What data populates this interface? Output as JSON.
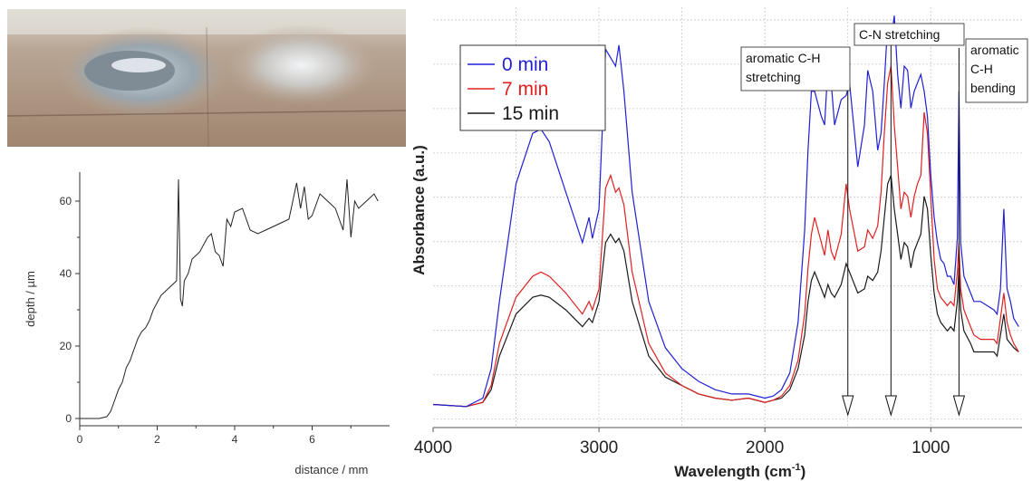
{
  "charts": [
    {
      "id": "depth-profile",
      "type": "line",
      "xlabel": "distance / mm",
      "ylabel": "depth / µm",
      "xlim": [
        0,
        8
      ],
      "ylim": [
        -2,
        68
      ],
      "xticks": [
        "0",
        "2",
        "4",
        "6"
      ],
      "xtick_values": [
        0,
        2,
        4,
        6
      ],
      "yticks": [
        "0",
        "20",
        "40",
        "60"
      ],
      "ytick_values": [
        0,
        20,
        40,
        60
      ],
      "grid": false,
      "series": [
        {
          "color": "#222222",
          "x": [
            0,
            0.5,
            0.7,
            0.8,
            0.9,
            1.0,
            1.1,
            1.2,
            1.3,
            1.4,
            1.5,
            1.6,
            1.7,
            1.8,
            1.9,
            2.0,
            2.1,
            2.2,
            2.3,
            2.4,
            2.5,
            2.55,
            2.6,
            2.65,
            2.7,
            2.8,
            2.9,
            3.0,
            3.1,
            3.2,
            3.3,
            3.4,
            3.5,
            3.6,
            3.7,
            3.8,
            3.9,
            4.0,
            4.2,
            4.4,
            4.6,
            4.8,
            5.0,
            5.2,
            5.4,
            5.6,
            5.7,
            5.8,
            5.9,
            6.0,
            6.2,
            6.4,
            6.6,
            6.8,
            6.9,
            7.0,
            7.1,
            7.2,
            7.4,
            7.6,
            7.7
          ],
          "y": [
            0,
            0,
            0.5,
            2,
            5,
            8,
            10,
            14,
            16,
            19,
            22,
            24,
            25,
            27,
            30,
            32,
            34,
            35,
            36,
            37,
            38,
            66,
            33,
            31,
            38,
            40,
            44,
            45,
            46,
            48,
            50,
            51,
            46,
            45,
            42,
            55,
            53,
            57,
            58,
            52,
            51,
            52,
            53,
            54,
            55,
            65,
            58,
            64,
            55,
            56,
            62,
            60,
            58,
            52,
            66,
            50,
            60,
            58,
            60,
            62,
            60
          ]
        }
      ]
    },
    {
      "id": "ftir-spectra",
      "type": "line",
      "xlabel": "Wavelength (cm",
      "xlabel_sup": "-1",
      "xlabel_end": ")",
      "ylabel": "Absorbance (a.u.)",
      "xlim": [
        4000,
        450
      ],
      "ylim": [
        0,
        1
      ],
      "xticks": [
        "4000",
        "3000",
        "2000",
        "1000"
      ],
      "xtick_values": [
        4000,
        3000,
        2000,
        1000
      ],
      "grid": true,
      "legend": "top-left",
      "series": [
        {
          "name": "15 min",
          "color": "#1a1a1a",
          "x": [
            4000,
            3800,
            3700,
            3650,
            3600,
            3500,
            3400,
            3350,
            3300,
            3200,
            3100,
            3060,
            3040,
            3000,
            2960,
            2930,
            2900,
            2880,
            2850,
            2800,
            2700,
            2600,
            2500,
            2400,
            2300,
            2200,
            2100,
            2000,
            1950,
            1900,
            1850,
            1800,
            1760,
            1740,
            1720,
            1700,
            1660,
            1640,
            1620,
            1600,
            1580,
            1540,
            1510,
            1490,
            1460,
            1440,
            1400,
            1380,
            1350,
            1320,
            1300,
            1280,
            1260,
            1240,
            1220,
            1200,
            1180,
            1160,
            1140,
            1120,
            1100,
            1080,
            1060,
            1040,
            1020,
            1000,
            980,
            960,
            940,
            920,
            900,
            880,
            860,
            840,
            830,
            820,
            800,
            760,
            740,
            700,
            660,
            620,
            600,
            580,
            560,
            540,
            520,
            500,
            470
          ],
          "y": [
            0.055,
            0.05,
            0.06,
            0.09,
            0.17,
            0.27,
            0.31,
            0.315,
            0.31,
            0.28,
            0.24,
            0.26,
            0.25,
            0.3,
            0.44,
            0.46,
            0.44,
            0.45,
            0.42,
            0.3,
            0.17,
            0.12,
            0.1,
            0.08,
            0.07,
            0.065,
            0.07,
            0.06,
            0.065,
            0.07,
            0.09,
            0.14,
            0.22,
            0.3,
            0.35,
            0.37,
            0.33,
            0.31,
            0.34,
            0.32,
            0.31,
            0.34,
            0.39,
            0.37,
            0.34,
            0.32,
            0.33,
            0.36,
            0.35,
            0.37,
            0.42,
            0.5,
            0.58,
            0.6,
            0.52,
            0.46,
            0.4,
            0.44,
            0.43,
            0.38,
            0.42,
            0.44,
            0.46,
            0.55,
            0.52,
            0.41,
            0.32,
            0.27,
            0.25,
            0.24,
            0.23,
            0.24,
            0.23,
            0.3,
            0.38,
            0.28,
            0.23,
            0.2,
            0.18,
            0.18,
            0.18,
            0.18,
            0.17,
            0.22,
            0.27,
            0.21,
            0.2,
            0.19,
            0.18
          ]
        },
        {
          "name": "7 min",
          "color": "#e02020",
          "x": [
            4000,
            3800,
            3700,
            3650,
            3600,
            3500,
            3400,
            3350,
            3300,
            3200,
            3100,
            3060,
            3040,
            3000,
            2960,
            2930,
            2900,
            2880,
            2850,
            2800,
            2700,
            2600,
            2500,
            2400,
            2300,
            2200,
            2100,
            2000,
            1950,
            1900,
            1850,
            1800,
            1760,
            1740,
            1720,
            1700,
            1660,
            1640,
            1620,
            1600,
            1580,
            1540,
            1510,
            1490,
            1460,
            1440,
            1400,
            1380,
            1350,
            1320,
            1300,
            1280,
            1260,
            1240,
            1220,
            1200,
            1180,
            1160,
            1140,
            1120,
            1100,
            1080,
            1060,
            1040,
            1020,
            1000,
            980,
            960,
            940,
            920,
            900,
            880,
            860,
            840,
            830,
            820,
            800,
            760,
            740,
            700,
            660,
            620,
            600,
            580,
            560,
            540,
            520,
            500,
            470
          ],
          "y": [
            0.055,
            0.05,
            0.06,
            0.1,
            0.2,
            0.31,
            0.36,
            0.37,
            0.36,
            0.32,
            0.27,
            0.3,
            0.28,
            0.33,
            0.57,
            0.6,
            0.56,
            0.57,
            0.53,
            0.37,
            0.2,
            0.13,
            0.1,
            0.08,
            0.07,
            0.065,
            0.07,
            0.06,
            0.065,
            0.075,
            0.1,
            0.16,
            0.27,
            0.38,
            0.46,
            0.5,
            0.44,
            0.41,
            0.47,
            0.42,
            0.4,
            0.46,
            0.58,
            0.52,
            0.46,
            0.42,
            0.43,
            0.47,
            0.45,
            0.48,
            0.56,
            0.7,
            0.82,
            0.86,
            0.72,
            0.62,
            0.52,
            0.56,
            0.55,
            0.5,
            0.55,
            0.58,
            0.6,
            0.75,
            0.7,
            0.55,
            0.4,
            0.33,
            0.31,
            0.3,
            0.29,
            0.3,
            0.29,
            0.37,
            0.44,
            0.33,
            0.28,
            0.24,
            0.22,
            0.21,
            0.21,
            0.21,
            0.2,
            0.26,
            0.32,
            0.25,
            0.22,
            0.2,
            0.18
          ]
        },
        {
          "name": "0 min",
          "color": "#1f1fd6",
          "x": [
            4000,
            3800,
            3700,
            3650,
            3600,
            3500,
            3400,
            3350,
            3300,
            3200,
            3100,
            3060,
            3040,
            3000,
            2960,
            2930,
            2900,
            2880,
            2850,
            2800,
            2700,
            2600,
            2500,
            2400,
            2300,
            2200,
            2100,
            2000,
            1950,
            1900,
            1850,
            1800,
            1760,
            1740,
            1720,
            1700,
            1660,
            1640,
            1620,
            1600,
            1580,
            1540,
            1510,
            1490,
            1460,
            1440,
            1400,
            1380,
            1350,
            1320,
            1300,
            1280,
            1260,
            1240,
            1220,
            1200,
            1180,
            1160,
            1140,
            1120,
            1100,
            1080,
            1060,
            1040,
            1020,
            1000,
            980,
            960,
            940,
            920,
            900,
            880,
            860,
            840,
            830,
            820,
            800,
            760,
            740,
            700,
            660,
            620,
            600,
            580,
            560,
            540,
            520,
            500,
            470
          ],
          "y": [
            0.055,
            0.05,
            0.07,
            0.14,
            0.3,
            0.58,
            0.7,
            0.71,
            0.68,
            0.56,
            0.44,
            0.5,
            0.45,
            0.52,
            0.9,
            0.88,
            0.86,
            0.91,
            0.8,
            0.56,
            0.3,
            0.19,
            0.14,
            0.11,
            0.09,
            0.08,
            0.08,
            0.07,
            0.075,
            0.09,
            0.13,
            0.25,
            0.47,
            0.66,
            0.8,
            0.8,
            0.74,
            0.72,
            0.86,
            0.82,
            0.72,
            0.78,
            0.79,
            0.82,
            0.7,
            0.62,
            0.72,
            0.85,
            0.8,
            0.66,
            0.7,
            0.82,
            0.96,
            0.92,
            0.98,
            0.84,
            0.76,
            0.86,
            0.85,
            0.76,
            0.8,
            0.82,
            0.84,
            0.8,
            0.74,
            0.6,
            0.5,
            0.44,
            0.4,
            0.39,
            0.36,
            0.36,
            0.34,
            0.45,
            0.8,
            0.44,
            0.36,
            0.32,
            0.3,
            0.3,
            0.29,
            0.28,
            0.27,
            0.33,
            0.52,
            0.33,
            0.3,
            0.26,
            0.24
          ]
        }
      ],
      "annotations": [
        {
          "lines": [
            "aromatic C-H",
            "stretching"
          ],
          "x": 1500
        },
        {
          "lines": [
            "C-N stretching"
          ],
          "x": 1240
        },
        {
          "lines": [
            "aromatic",
            "C-H",
            "bending"
          ],
          "x": 830
        }
      ]
    }
  ]
}
